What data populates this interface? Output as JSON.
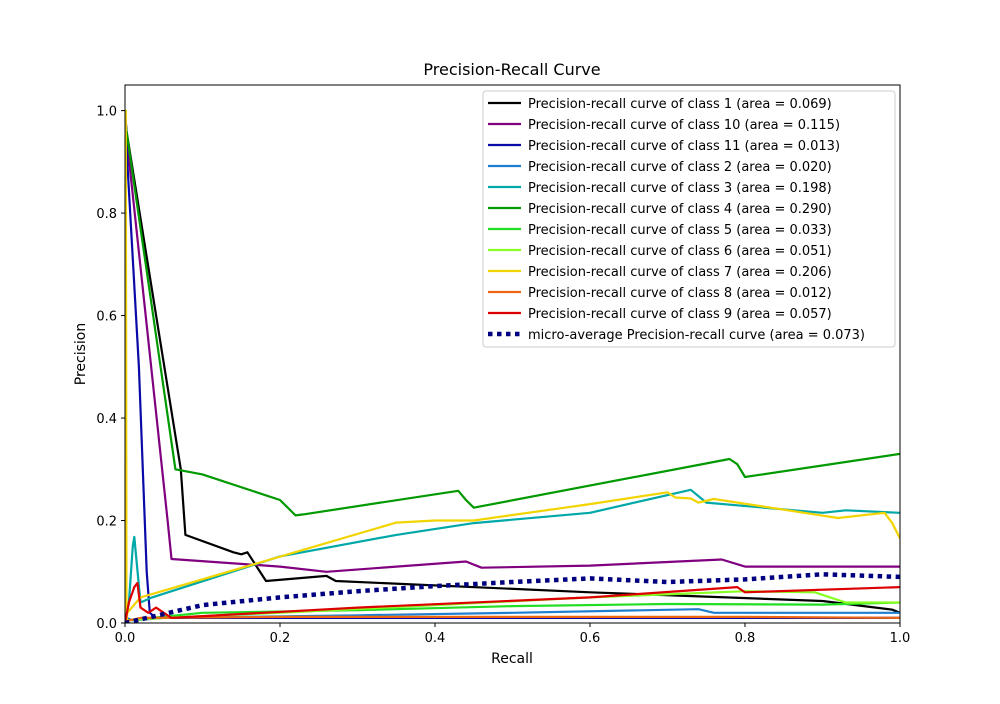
{
  "chart_data": {
    "type": "line",
    "title": "Precision-Recall Curve",
    "xlabel": "Recall",
    "ylabel": "Precision",
    "xlim": [
      0,
      1
    ],
    "ylim": [
      0,
      1.05
    ],
    "xticks": [
      0.0,
      0.2,
      0.4,
      0.6,
      0.8,
      1.0
    ],
    "yticks": [
      0.0,
      0.2,
      0.4,
      0.6,
      0.8,
      1.0
    ],
    "xtick_labels": [
      "0.0",
      "0.2",
      "0.4",
      "0.6",
      "0.8",
      "1.0"
    ],
    "ytick_labels": [
      "0.0",
      "0.2",
      "0.4",
      "0.6",
      "0.8",
      "1.0"
    ],
    "grid": false,
    "legend_position": "top-right",
    "series": [
      {
        "name": "Precision-recall curve of class 1 (area = 0.069)",
        "color": "#000000",
        "style": "solid",
        "x": [
          0,
          0.002,
          0.072,
          0.078,
          0.14,
          0.15,
          0.158,
          0.182,
          0.26,
          0.272,
          0.6,
          0.9,
          0.99,
          1.0
        ],
        "y": [
          1.0,
          0.96,
          0.3,
          0.172,
          0.138,
          0.134,
          0.138,
          0.082,
          0.092,
          0.082,
          0.06,
          0.043,
          0.026,
          0.02
        ]
      },
      {
        "name": "Precision-recall curve of class 10 (area = 0.115)",
        "color": "#800080",
        "style": "solid",
        "x": [
          0,
          0.002,
          0.055,
          0.06,
          0.2,
          0.26,
          0.44,
          0.46,
          0.6,
          0.77,
          0.8,
          1.0
        ],
        "y": [
          1.0,
          0.95,
          0.2,
          0.125,
          0.11,
          0.1,
          0.12,
          0.108,
          0.112,
          0.124,
          0.11,
          0.11
        ]
      },
      {
        "name": "Precision-recall curve of class 11 (area = 0.013)",
        "color": "#0a0aa8",
        "style": "solid",
        "x": [
          0,
          0.003,
          0.018,
          0.028,
          0.032,
          0.04,
          0.4,
          1.0
        ],
        "y": [
          1.0,
          0.9,
          0.5,
          0.1,
          0.02,
          0.01,
          0.01,
          0.01
        ]
      },
      {
        "name": "Precision-recall curve of class 2 (area = 0.020)",
        "color": "#1e7fd0",
        "style": "solid",
        "x": [
          0,
          0.002,
          0.01,
          0.05,
          0.3,
          0.5,
          0.74,
          0.76,
          0.9,
          1.0
        ],
        "y": [
          0.0,
          0.01,
          0.005,
          0.01,
          0.015,
          0.02,
          0.027,
          0.02,
          0.02,
          0.02
        ]
      },
      {
        "name": "Precision-recall curve of class 3 (area = 0.198)",
        "color": "#00a8a8",
        "style": "solid",
        "x": [
          0,
          0.005,
          0.01,
          0.012,
          0.015,
          0.02,
          0.035,
          0.2,
          0.35,
          0.45,
          0.6,
          0.73,
          0.75,
          0.9,
          0.93,
          1.0
        ],
        "y": [
          0.0,
          0.04,
          0.15,
          0.168,
          0.12,
          0.04,
          0.05,
          0.13,
          0.172,
          0.195,
          0.215,
          0.26,
          0.235,
          0.215,
          0.22,
          0.215
        ]
      },
      {
        "name": "Precision-recall curve of class 4 (area = 0.290)",
        "color": "#009900",
        "style": "solid",
        "x": [
          0,
          0.065,
          0.1,
          0.2,
          0.21,
          0.22,
          0.23,
          0.43,
          0.44,
          0.45,
          0.46,
          0.78,
          0.79,
          0.8,
          1.0
        ],
        "y": [
          0.98,
          0.3,
          0.29,
          0.24,
          0.225,
          0.21,
          0.212,
          0.258,
          0.24,
          0.225,
          0.228,
          0.32,
          0.31,
          0.285,
          0.33
        ]
      },
      {
        "name": "Precision-recall curve of class 5 (area = 0.033)",
        "color": "#22dd22",
        "style": "solid",
        "x": [
          0,
          0.002,
          0.1,
          0.3,
          0.5,
          0.7,
          0.9,
          1.0
        ],
        "y": [
          0.0,
          0.005,
          0.02,
          0.025,
          0.033,
          0.037,
          0.036,
          0.04
        ]
      },
      {
        "name": "Precision-recall curve of class 6 (area = 0.051)",
        "color": "#88ff22",
        "style": "solid",
        "x": [
          0,
          0.002,
          0.05,
          0.2,
          0.4,
          0.6,
          0.8,
          0.89,
          0.91,
          0.93,
          1.0
        ],
        "y": [
          0.0,
          0.005,
          0.01,
          0.02,
          0.035,
          0.05,
          0.062,
          0.06,
          0.05,
          0.04,
          0.04
        ]
      },
      {
        "name": "Precision-recall curve of class 7 (area = 0.206)",
        "color": "#f2d400",
        "style": "solid",
        "x": [
          0,
          0.001,
          0.002,
          0.003,
          0.02,
          0.35,
          0.4,
          0.45,
          0.6,
          0.7,
          0.71,
          0.73,
          0.74,
          0.76,
          0.89,
          0.92,
          0.98,
          0.99,
          1.0
        ],
        "y": [
          0.0,
          1.0,
          0.0,
          0.02,
          0.05,
          0.196,
          0.2,
          0.2,
          0.232,
          0.255,
          0.245,
          0.243,
          0.235,
          0.242,
          0.212,
          0.205,
          0.215,
          0.195,
          0.165
        ]
      },
      {
        "name": "Precision-recall curve of class 8 (area = 0.012)",
        "color": "#ee6611",
        "style": "solid",
        "x": [
          0,
          0.005,
          0.02,
          0.2,
          0.5,
          0.8,
          1.0
        ],
        "y": [
          0.0,
          0.005,
          0.01,
          0.012,
          0.012,
          0.012,
          0.01
        ]
      },
      {
        "name": "Precision-recall curve of class 9 (area = 0.057)",
        "color": "#dd0000",
        "style": "solid",
        "x": [
          0,
          0.005,
          0.012,
          0.016,
          0.02,
          0.03,
          0.04,
          0.05,
          0.06,
          0.3,
          0.6,
          0.79,
          0.8,
          1.0
        ],
        "y": [
          0.0,
          0.04,
          0.07,
          0.078,
          0.03,
          0.02,
          0.03,
          0.02,
          0.01,
          0.03,
          0.05,
          0.07,
          0.06,
          0.07
        ]
      },
      {
        "name": "micro-average Precision-recall curve (area = 0.073)",
        "color": "#000080",
        "style": "dotted",
        "x": [
          0,
          0.1,
          0.2,
          0.3,
          0.4,
          0.5,
          0.6,
          0.7,
          0.8,
          0.9,
          1.0
        ],
        "y": [
          0.0,
          0.035,
          0.05,
          0.062,
          0.072,
          0.08,
          0.087,
          0.08,
          0.085,
          0.095,
          0.09
        ]
      }
    ]
  }
}
